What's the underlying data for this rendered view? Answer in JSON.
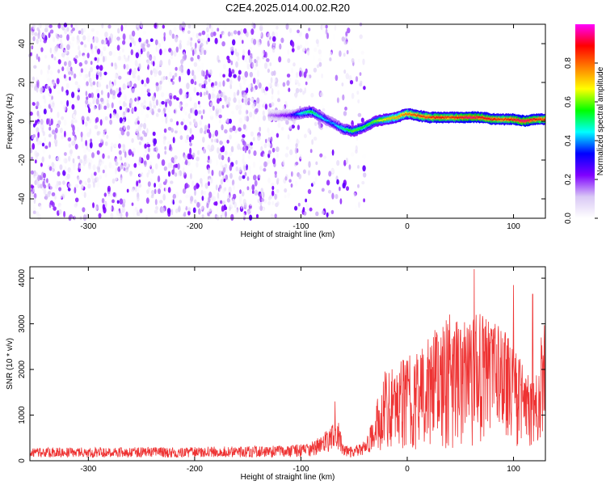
{
  "figure_title": "C2E4.2025.014.00.02.R20",
  "chart_data": [
    {
      "type": "heatmap",
      "title": "",
      "xlabel": "Height of straight line (km)",
      "ylabel": "Frequency (Hz)",
      "xlim": [
        -355,
        130
      ],
      "ylim": [
        -50,
        50
      ],
      "xticks": [
        -300,
        -200,
        -100,
        0,
        100
      ],
      "yticks": [
        -40,
        -20,
        0,
        20,
        40
      ],
      "colorbar": {
        "label": "Normalized spectral amplitude",
        "range": [
          0,
          1
        ],
        "ticks": [
          "0.0",
          "0.2",
          "0.4",
          "0.6",
          "0.8"
        ],
        "colormap": [
          "#ffffff",
          "#d9c8f5",
          "#7f00ff",
          "#0000ff",
          "#00ffff",
          "#00ff00",
          "#ffff00",
          "#ff8000",
          "#ff0000",
          "#ff00ff"
        ]
      },
      "noise_region": {
        "x": [
          -355,
          -40
        ],
        "y": [
          -50,
          50
        ],
        "amplitude_range": [
          0.0,
          0.25
        ]
      },
      "ridge": {
        "x": [
          -130,
          -110,
          -100,
          -90,
          -80,
          -70,
          -60,
          -50,
          -40,
          -30,
          -20,
          -10,
          0,
          10,
          20,
          30,
          40,
          50,
          60,
          70,
          80,
          90,
          100,
          110,
          120,
          130
        ],
        "frequency": [
          3,
          3,
          4,
          5,
          2,
          -1,
          -4,
          -5,
          -3,
          0,
          1,
          2,
          4,
          3,
          2,
          2,
          2,
          2,
          2,
          2,
          1,
          1,
          1,
          0,
          1,
          1
        ],
        "amplitude": [
          0.15,
          0.25,
          0.45,
          0.55,
          0.45,
          0.4,
          0.5,
          0.6,
          0.55,
          0.6,
          0.7,
          0.75,
          0.8,
          0.85,
          0.85,
          0.9,
          0.85,
          0.9,
          0.95,
          0.9,
          0.9,
          0.85,
          0.9,
          0.95,
          0.9,
          0.85
        ]
      }
    },
    {
      "type": "line",
      "title": "",
      "xlabel": "Height of straight line (km)",
      "ylabel": "SNR (10 * v/v)",
      "xlim": [
        -355,
        130
      ],
      "ylim": [
        0,
        4250
      ],
      "xticks": [
        -300,
        -200,
        -100,
        0,
        100
      ],
      "yticks": [
        0,
        1000,
        2000,
        3000,
        4000
      ],
      "series": [
        {
          "color": "#ee3333",
          "envelope_x": [
            -355,
            -300,
            -200,
            -110,
            -90,
            -80,
            -70,
            -65,
            -60,
            -50,
            -40,
            -30,
            -20,
            -10,
            0,
            10,
            20,
            30,
            40,
            50,
            60,
            65,
            70,
            80,
            90,
            100,
            110,
            120,
            130
          ],
          "baseline": [
            200,
            200,
            210,
            230,
            280,
            400,
            550,
            650,
            250,
            230,
            300,
            700,
            1200,
            1300,
            1350,
            1500,
            1700,
            1700,
            1900,
            1800,
            1800,
            1900,
            1900,
            1800,
            1700,
            1500,
            1200,
            1000,
            1900
          ],
          "peaks": [
            {
              "x": 63,
              "y": 4200
            },
            {
              "x": 100,
              "y": 3850
            },
            {
              "x": 118,
              "y": 3650
            },
            {
              "x": -68,
              "y": 1300
            },
            {
              "x": 126,
              "y": 2700
            }
          ]
        }
      ]
    }
  ]
}
